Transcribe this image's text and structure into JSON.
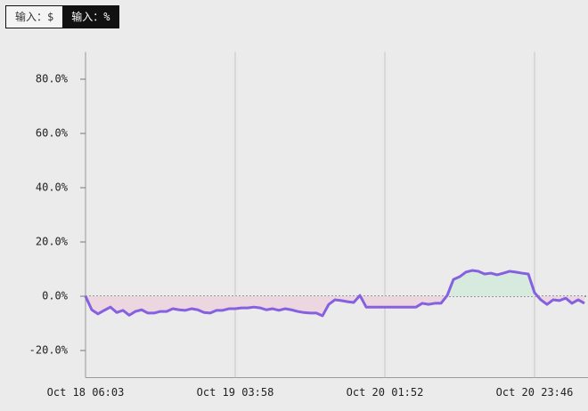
{
  "toggles": [
    "输入：$",
    "输入：%"
  ],
  "chart_data": {
    "type": "line",
    "categories": [
      "Oct 18 06:03",
      null,
      null,
      null,
      null,
      null,
      null,
      null,
      null,
      null,
      null,
      null,
      null,
      null,
      null,
      null,
      null,
      null,
      null,
      null,
      null,
      null,
      null,
      null,
      "Oct 19 03:58",
      null,
      null,
      null,
      null,
      null,
      null,
      null,
      null,
      null,
      null,
      null,
      null,
      null,
      null,
      null,
      null,
      null,
      null,
      null,
      null,
      null,
      null,
      null,
      "Oct 20 01:52",
      null,
      null,
      null,
      null,
      null,
      null,
      null,
      null,
      null,
      null,
      null,
      null,
      null,
      null,
      null,
      null,
      null,
      null,
      null,
      null,
      null,
      null,
      null,
      "Oct 20 23:46",
      null,
      null,
      null,
      null,
      null,
      null,
      null,
      null
    ],
    "series": [
      {
        "color": "#8560e0",
        "values": [
          0,
          -5,
          -6.5,
          -5.2,
          -4,
          -6,
          -5.2,
          -7,
          -5.6,
          -5,
          -6.2,
          -6.2,
          -5.6,
          -5.6,
          -4.6,
          -5,
          -5.2,
          -4.6,
          -5,
          -6,
          -6.2,
          -5.2,
          -5.2,
          -4.6,
          -4.6,
          -4.3,
          -4.3,
          -4,
          -4.3,
          -5,
          -4.6,
          -5.2,
          -4.6,
          -5,
          -5.6,
          -6,
          -6.2,
          -6.2,
          -7.2,
          -3,
          -1.3,
          -1.6,
          -2,
          -2.3,
          0.3,
          -4,
          -4,
          -4,
          -4,
          -4,
          -4,
          -4,
          -4,
          -4,
          -2.6,
          -3,
          -2.6,
          -2.6,
          0.3,
          6.2,
          7.2,
          8.9,
          9.5,
          9.2,
          8.2,
          8.5,
          7.9,
          8.5,
          9.2,
          8.9,
          8.5,
          8.2,
          1.3,
          -1.3,
          -3,
          -1.3,
          -1.6,
          -0.7,
          -2.6,
          -1.3,
          -2.6
        ]
      }
    ],
    "ylim": [
      -30,
      90
    ],
    "yticks": [
      {
        "value": -20,
        "label": "-20.0%"
      },
      {
        "value": 0,
        "label": "0.0%"
      },
      {
        "value": 20,
        "label": "20.0%"
      },
      {
        "value": 40,
        "label": "40.0%"
      },
      {
        "value": 60,
        "label": "60.0%"
      },
      {
        "value": 80,
        "label": "80.0%"
      }
    ],
    "positive_fill": "#d6ebdd",
    "negative_fill": "#ecd6e0"
  }
}
